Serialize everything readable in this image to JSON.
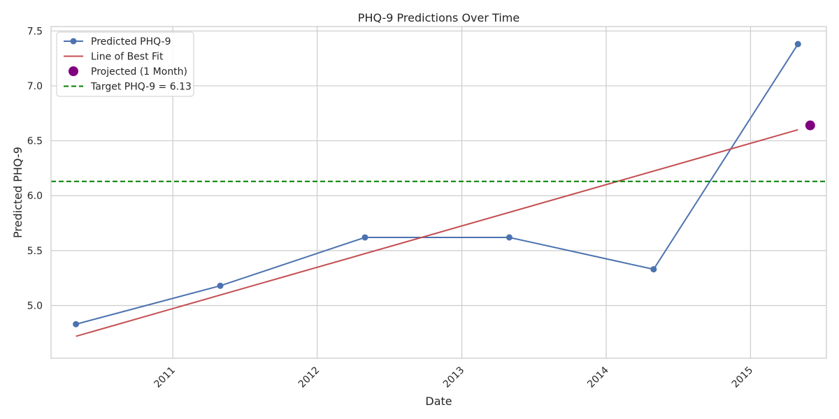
{
  "chart_data": {
    "type": "line",
    "title": "PHQ-9 Predictions Over Time",
    "xlabel": "Date",
    "ylabel": "Predicted PHQ-9",
    "xlim": [
      "2010-02-27",
      "2015-07-12"
    ],
    "ylim": [
      4.52,
      7.54
    ],
    "x_ticks": [
      "2011",
      "2012",
      "2013",
      "2014",
      "2015"
    ],
    "y_ticks": [
      "5.0",
      "5.5",
      "6.0",
      "6.5",
      "7.0",
      "7.5"
    ],
    "grid": true,
    "legend_position": "top-left",
    "series": [
      {
        "name": "Predicted PHQ-9",
        "kind": "line-markers",
        "color": "#4c72b0",
        "x": [
          "2010-05-01",
          "2011-05-01",
          "2012-05-01",
          "2013-05-01",
          "2014-05-01",
          "2015-05-01"
        ],
        "y": [
          4.83,
          5.18,
          5.62,
          5.62,
          5.33,
          7.38
        ]
      },
      {
        "name": "Line of Best Fit",
        "kind": "line",
        "color": "#c44e52",
        "x": [
          "2010-05-01",
          "2015-05-01"
        ],
        "y": [
          4.72,
          6.6
        ]
      },
      {
        "name": "Projected (1 Month)",
        "kind": "point",
        "color": "#800080",
        "x": [
          "2015-06-01"
        ],
        "y": [
          6.64
        ]
      },
      {
        "name": "Target PHQ-9 = 6.13",
        "kind": "hline",
        "color": "#008000",
        "y": [
          6.13
        ]
      }
    ]
  }
}
